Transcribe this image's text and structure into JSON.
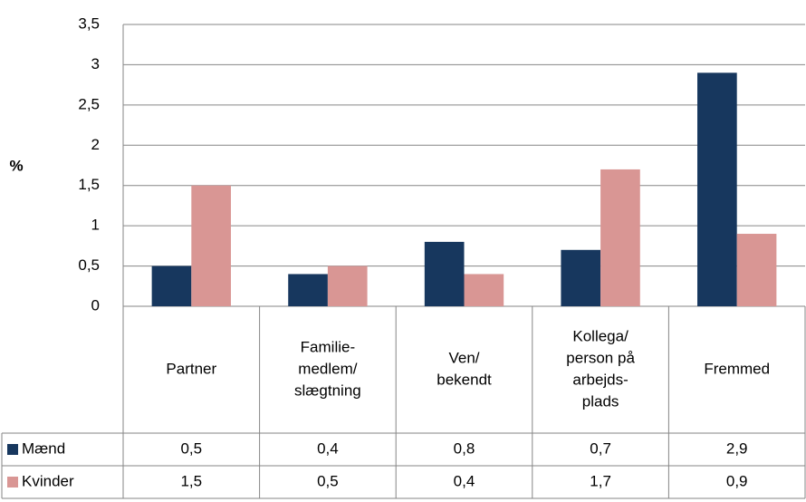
{
  "chart_data": {
    "type": "bar",
    "y_label": "%",
    "categories": [
      [
        "Partner"
      ],
      [
        "Familie-",
        "medlem/",
        "slægtning"
      ],
      [
        "Ven/",
        "bekendt"
      ],
      [
        "Kollega/",
        "person på",
        "arbejds-",
        "plads"
      ],
      [
        "Fremmed"
      ]
    ],
    "series": [
      {
        "name": "Mænd",
        "color": "#17375e",
        "values": [
          0.5,
          0.4,
          0.8,
          0.7,
          2.9
        ],
        "value_labels": [
          "0,5",
          "0,4",
          "0,8",
          "0,7",
          "2,9"
        ]
      },
      {
        "name": "Kvinder",
        "color": "#d99694",
        "values": [
          1.5,
          0.5,
          0.4,
          1.7,
          0.9
        ],
        "value_labels": [
          "1,5",
          "0,5",
          "0,4",
          "1,7",
          "0,9"
        ]
      }
    ],
    "ylim": [
      0,
      3.5
    ],
    "yticks": [
      0,
      {
        "value": 0.5,
        "label": "0,5"
      },
      1,
      {
        "value": 1.5,
        "label": "1,5"
      },
      2,
      {
        "value": 2.5,
        "label": "2,5"
      },
      3,
      {
        "value": 3.5,
        "label": "3,5"
      }
    ],
    "grid": true
  }
}
